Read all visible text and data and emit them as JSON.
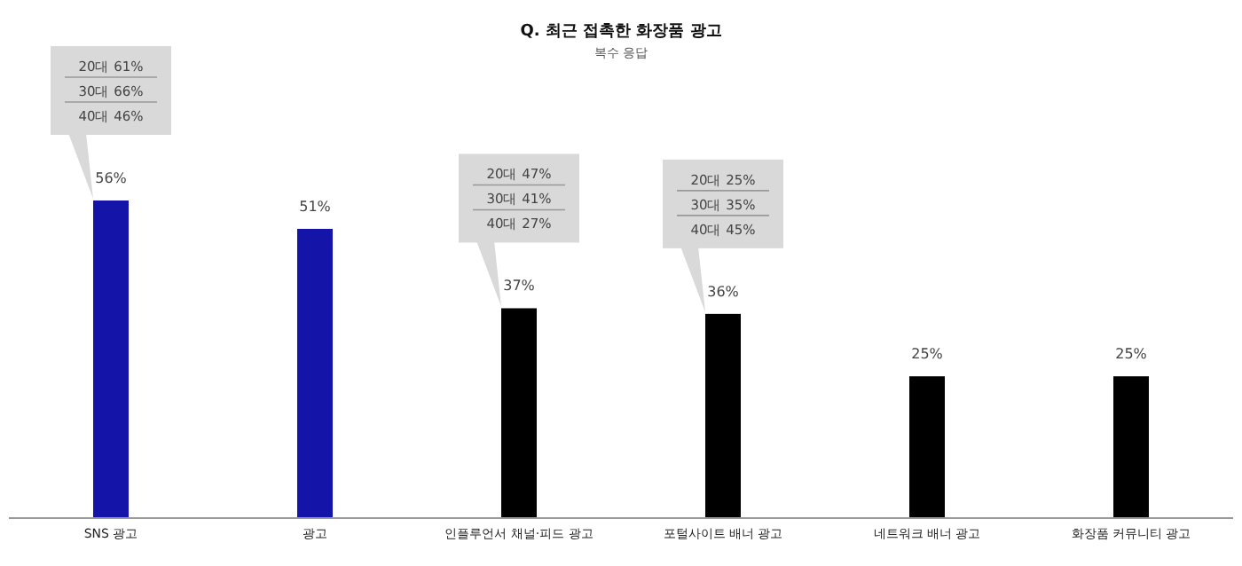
{
  "chart_data": {
    "type": "bar",
    "title": "Q. 최근 접촉한 화장품 광고",
    "subtitle": "복수 응답",
    "categories": [
      "SNS 광고",
      "광고",
      "인플루언서 채널·피드 광고",
      "포털사이트 배너 광고",
      "네트워크 배너 광고",
      "화장품 커뮤니티 광고"
    ],
    "values": [
      56,
      51,
      37,
      36,
      25,
      25
    ],
    "colors": [
      "#1414a8",
      "#1414a8",
      "#000000",
      "#000000",
      "#000000",
      "#000000"
    ],
    "value_labels": [
      "56%",
      "51%",
      "37%",
      "36%",
      "25%",
      "25%"
    ],
    "annotations": [
      "20대   61%",
      "30대   66%",
      "40대   46%",
      "20대   47%",
      "30대   41%",
      "40대   27%",
      "20대   25%",
      "30대   35%",
      "40대   45%"
    ]
  }
}
